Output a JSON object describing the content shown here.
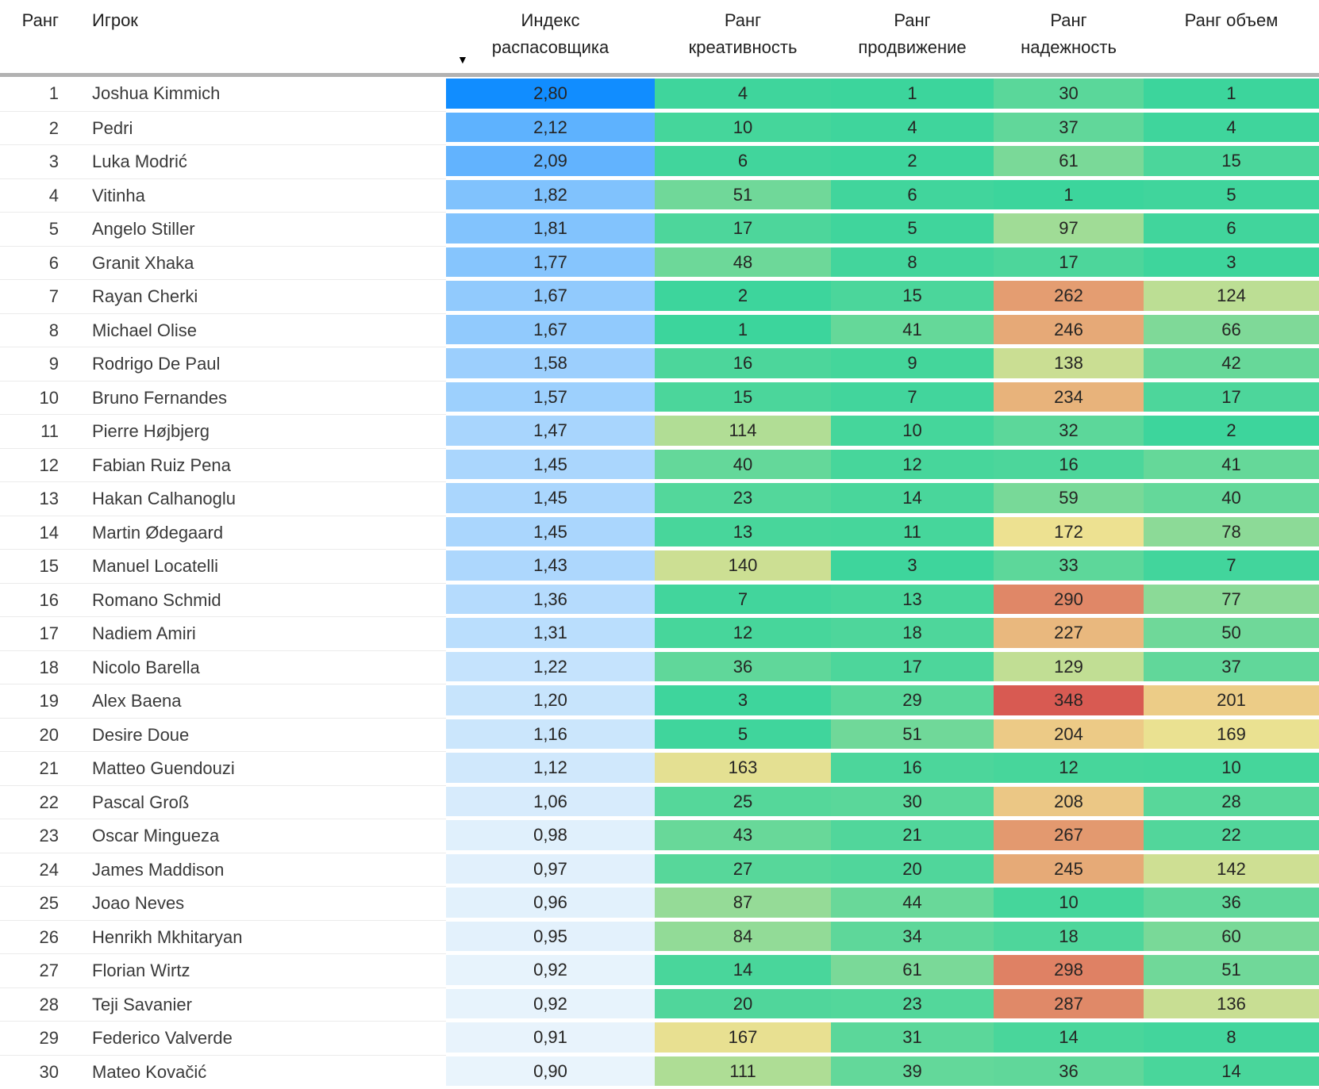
{
  "chart_data": {
    "type": "table",
    "title": "",
    "columns": [
      {
        "key": "rank",
        "label": "Ранг"
      },
      {
        "key": "player",
        "label": "Игрок"
      },
      {
        "key": "index",
        "label": "Индекс распасовщика"
      },
      {
        "key": "creativity",
        "label": "Ранг креативность"
      },
      {
        "key": "progression",
        "label": "Ранг продвижение"
      },
      {
        "key": "reliability",
        "label": "Ранг надежность"
      },
      {
        "key": "volume",
        "label": "Ранг объем"
      }
    ],
    "sort": {
      "column": "Индекс распасовщика",
      "direction": "descending",
      "icon": "▼"
    },
    "conditional_formatting": {
      "index_scale": {
        "min": 0.9,
        "max": 2.8,
        "min_color": "#E9F4FC",
        "max_color": "#118DFF"
      },
      "rank_scale": {
        "min": 1,
        "mid": 174.5,
        "max": 348,
        "min_color": "#3CD59C",
        "mid_color": "#F0E191",
        "max_color": "#D85A52"
      }
    },
    "rows": [
      {
        "rank": 1,
        "player": "Joshua Kimmich",
        "index": "2,80",
        "creativity": 4,
        "progression": 1,
        "reliability": 30,
        "volume": 1
      },
      {
        "rank": 2,
        "player": "Pedri",
        "index": "2,12",
        "creativity": 10,
        "progression": 4,
        "reliability": 37,
        "volume": 4
      },
      {
        "rank": 3,
        "player": "Luka Modrić",
        "index": "2,09",
        "creativity": 6,
        "progression": 2,
        "reliability": 61,
        "volume": 15
      },
      {
        "rank": 4,
        "player": "Vitinha",
        "index": "1,82",
        "creativity": 51,
        "progression": 6,
        "reliability": 1,
        "volume": 5
      },
      {
        "rank": 5,
        "player": "Angelo Stiller",
        "index": "1,81",
        "creativity": 17,
        "progression": 5,
        "reliability": 97,
        "volume": 6
      },
      {
        "rank": 6,
        "player": "Granit Xhaka",
        "index": "1,77",
        "creativity": 48,
        "progression": 8,
        "reliability": 17,
        "volume": 3
      },
      {
        "rank": 7,
        "player": "Rayan Cherki",
        "index": "1,67",
        "creativity": 2,
        "progression": 15,
        "reliability": 262,
        "volume": 124
      },
      {
        "rank": 8,
        "player": "Michael Olise",
        "index": "1,67",
        "creativity": 1,
        "progression": 41,
        "reliability": 246,
        "volume": 66
      },
      {
        "rank": 9,
        "player": "Rodrigo De Paul",
        "index": "1,58",
        "creativity": 16,
        "progression": 9,
        "reliability": 138,
        "volume": 42
      },
      {
        "rank": 10,
        "player": "Bruno Fernandes",
        "index": "1,57",
        "creativity": 15,
        "progression": 7,
        "reliability": 234,
        "volume": 17
      },
      {
        "rank": 11,
        "player": "Pierre Højbjerg",
        "index": "1,47",
        "creativity": 114,
        "progression": 10,
        "reliability": 32,
        "volume": 2
      },
      {
        "rank": 12,
        "player": "Fabian Ruiz Pena",
        "index": "1,45",
        "creativity": 40,
        "progression": 12,
        "reliability": 16,
        "volume": 41
      },
      {
        "rank": 13,
        "player": "Hakan Calhanoglu",
        "index": "1,45",
        "creativity": 23,
        "progression": 14,
        "reliability": 59,
        "volume": 40
      },
      {
        "rank": 14,
        "player": "Martin Ødegaard",
        "index": "1,45",
        "creativity": 13,
        "progression": 11,
        "reliability": 172,
        "volume": 78
      },
      {
        "rank": 15,
        "player": "Manuel Locatelli",
        "index": "1,43",
        "creativity": 140,
        "progression": 3,
        "reliability": 33,
        "volume": 7
      },
      {
        "rank": 16,
        "player": "Romano Schmid",
        "index": "1,36",
        "creativity": 7,
        "progression": 13,
        "reliability": 290,
        "volume": 77
      },
      {
        "rank": 17,
        "player": "Nadiem Amiri",
        "index": "1,31",
        "creativity": 12,
        "progression": 18,
        "reliability": 227,
        "volume": 50
      },
      {
        "rank": 18,
        "player": "Nicolo Barella",
        "index": "1,22",
        "creativity": 36,
        "progression": 17,
        "reliability": 129,
        "volume": 37
      },
      {
        "rank": 19,
        "player": "Alex Baena",
        "index": "1,20",
        "creativity": 3,
        "progression": 29,
        "reliability": 348,
        "volume": 201
      },
      {
        "rank": 20,
        "player": "Desire Doue",
        "index": "1,16",
        "creativity": 5,
        "progression": 51,
        "reliability": 204,
        "volume": 169
      },
      {
        "rank": 21,
        "player": "Matteo Guendouzi",
        "index": "1,12",
        "creativity": 163,
        "progression": 16,
        "reliability": 12,
        "volume": 10
      },
      {
        "rank": 22,
        "player": "Pascal Groß",
        "index": "1,06",
        "creativity": 25,
        "progression": 30,
        "reliability": 208,
        "volume": 28
      },
      {
        "rank": 23,
        "player": "Oscar Mingueza",
        "index": "0,98",
        "creativity": 43,
        "progression": 21,
        "reliability": 267,
        "volume": 22
      },
      {
        "rank": 24,
        "player": "James Maddison",
        "index": "0,97",
        "creativity": 27,
        "progression": 20,
        "reliability": 245,
        "volume": 142
      },
      {
        "rank": 25,
        "player": "Joao Neves",
        "index": "0,96",
        "creativity": 87,
        "progression": 44,
        "reliability": 10,
        "volume": 36
      },
      {
        "rank": 26,
        "player": "Henrikh Mkhitaryan",
        "index": "0,95",
        "creativity": 84,
        "progression": 34,
        "reliability": 18,
        "volume": 60
      },
      {
        "rank": 27,
        "player": "Florian Wirtz",
        "index": "0,92",
        "creativity": 14,
        "progression": 61,
        "reliability": 298,
        "volume": 51
      },
      {
        "rank": 28,
        "player": "Teji Savanier",
        "index": "0,92",
        "creativity": 20,
        "progression": 23,
        "reliability": 287,
        "volume": 136
      },
      {
        "rank": 29,
        "player": "Federico Valverde",
        "index": "0,91",
        "creativity": 167,
        "progression": 31,
        "reliability": 14,
        "volume": 8
      },
      {
        "rank": 30,
        "player": "Mateo Kovačić",
        "index": "0,90",
        "creativity": 111,
        "progression": 39,
        "reliability": 36,
        "volume": 14
      }
    ]
  }
}
